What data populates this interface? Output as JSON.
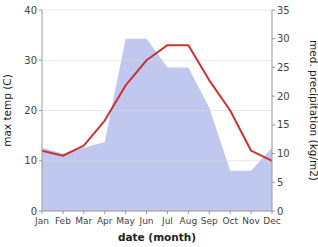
{
  "chart_data": {
    "type": "line",
    "xlabel": "date (month)",
    "ylabel": "max temp (C)",
    "y2label": "med. precipitation (kg/m2)",
    "categories": [
      "Jan",
      "Feb",
      "Mar",
      "Apr",
      "May",
      "Jun",
      "Jul",
      "Aug",
      "Sep",
      "Oct",
      "Nov",
      "Dec"
    ],
    "series": [
      {
        "type": "area",
        "axis": "y2",
        "color": "#c0c8f0",
        "values": [
          11,
          10,
          11,
          12,
          30,
          30,
          25,
          25,
          18,
          7,
          7,
          11
        ]
      },
      {
        "type": "line",
        "color": "#cc3333",
        "values": [
          12,
          11,
          13,
          18,
          25,
          30,
          33,
          33,
          26,
          20,
          12,
          10
        ]
      }
    ],
    "ylim": [
      0,
      40
    ],
    "yticks": [
      0,
      10,
      20,
      30,
      40
    ],
    "y2lim": [
      0,
      35
    ],
    "y2ticks": [
      0,
      5,
      10,
      15,
      20,
      25,
      30,
      35
    ],
    "grid": true
  }
}
